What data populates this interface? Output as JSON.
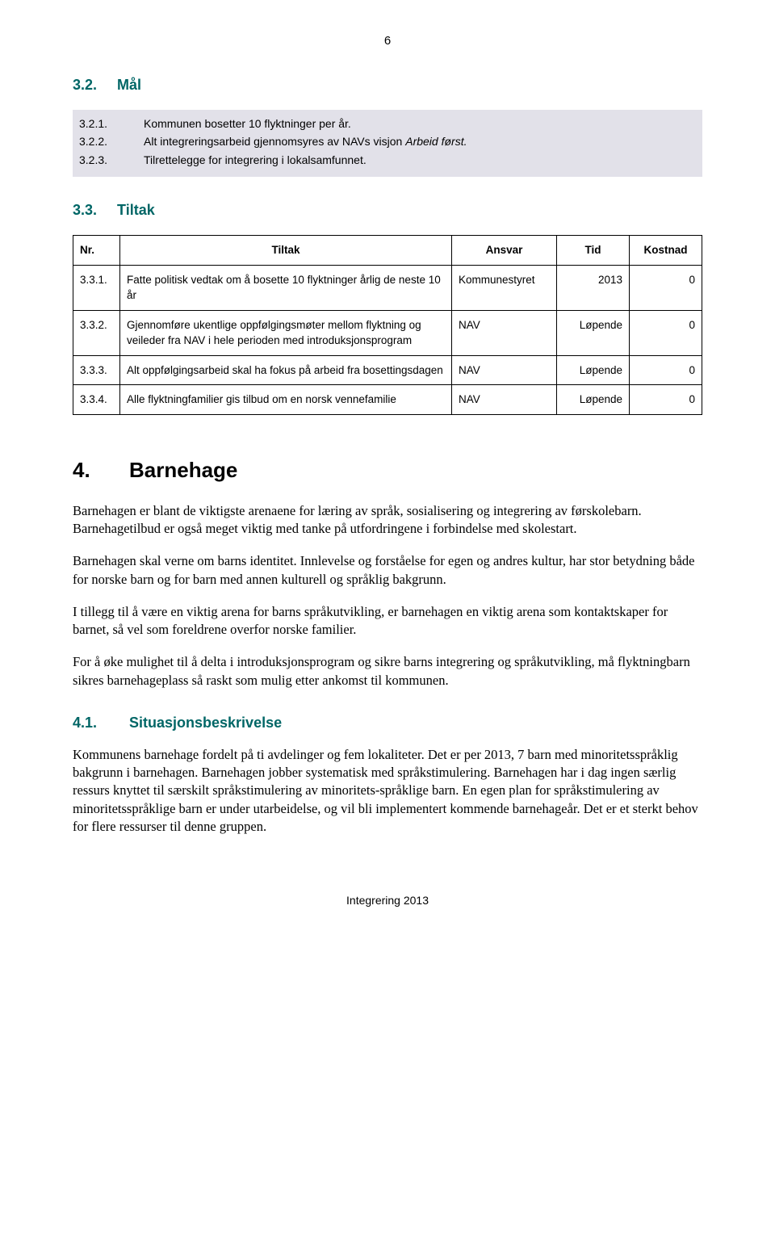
{
  "page_number": "6",
  "section_mal": {
    "heading_num": "3.2.",
    "heading_text": "Mål",
    "goals": [
      {
        "num": "3.2.1.",
        "text_pre": "Kommunen bosetter 10 flyktninger per år.",
        "italic": ""
      },
      {
        "num": "3.2.2.",
        "text_pre": "Alt integreringsarbeid gjennomsyres av NAVs visjon ",
        "italic": "Arbeid først."
      },
      {
        "num": "3.2.3.",
        "text_pre": "Tilrettelegge for integrering i lokalsamfunnet.",
        "italic": ""
      }
    ]
  },
  "section_tiltak": {
    "heading_num": "3.3.",
    "heading_text": "Tiltak",
    "columns": [
      "Nr.",
      "Tiltak",
      "Ansvar",
      "Tid",
      "Kostnad"
    ],
    "rows": [
      {
        "nr": "3.3.1.",
        "tiltak": "Fatte politisk vedtak om å bosette 10 flyktninger årlig de neste 10 år",
        "ansvar": "Kommunestyret",
        "tid": "2013",
        "kostnad": "0"
      },
      {
        "nr": "3.3.2.",
        "tiltak": "Gjennomføre ukentlige oppfølgingsmøter mellom flyktning og veileder fra NAV i hele perioden med introduksjonsprogram",
        "ansvar": "NAV",
        "tid": "Løpende",
        "kostnad": "0"
      },
      {
        "nr": "3.3.3.",
        "tiltak": "Alt oppfølgingsarbeid skal ha fokus på arbeid fra bosettingsdagen",
        "ansvar": "NAV",
        "tid": "Løpende",
        "kostnad": "0"
      },
      {
        "nr": "3.3.4.",
        "tiltak": "Alle flyktningfamilier gis tilbud om en norsk vennefamilie",
        "ansvar": "NAV",
        "tid": "Løpende",
        "kostnad": "0"
      }
    ]
  },
  "section_barnehage": {
    "heading_num": "4.",
    "heading_text": "Barnehage",
    "paragraphs": [
      "Barnehagen er blant de viktigste arenaene for læring av språk, sosialisering og integrering av førskolebarn. Barnehagetilbud er også meget viktig med tanke på utfordringene i forbindelse med skolestart.",
      "Barnehagen skal verne om barns identitet. Innlevelse og forståelse for egen og andres kultur, har stor betydning både for norske barn og for barn med annen kulturell og språklig bakgrunn.",
      "I tillegg til å være en viktig arena for barns språkutvikling, er barnehagen en viktig arena som kontaktskaper for barnet, så vel som foreldrene overfor norske familier.",
      "For å øke mulighet til å delta i introduksjonsprogram og sikre barns integrering og språkutvikling, må flyktningbarn sikres barnehageplass så raskt som mulig etter ankomst til kommunen."
    ]
  },
  "section_situasjon": {
    "heading_num": "4.1.",
    "heading_text": "Situasjonsbeskrivelse",
    "paragraph": "Kommunens barnehage fordelt på ti avdelinger og fem lokaliteter. Det er per 2013, 7 barn med minoritetsspråklig bakgrunn i barnehagen. Barnehagen jobber systematisk med språkstimulering. Barnehagen har i dag ingen særlig ressurs knyttet til særskilt språkstimulering av minoritets-språklige barn. En egen plan for språkstimulering av minoritetsspråklige barn er under utarbeidelse, og vil bli implementert kommende barnehageår. Det er et sterkt behov for flere ressurser til denne gruppen."
  },
  "footer_text": "Integrering 2013",
  "colors": {
    "heading_teal": "#006666",
    "goals_bg": "#e2e1e9",
    "text": "#000000",
    "background": "#ffffff",
    "border": "#000000"
  }
}
